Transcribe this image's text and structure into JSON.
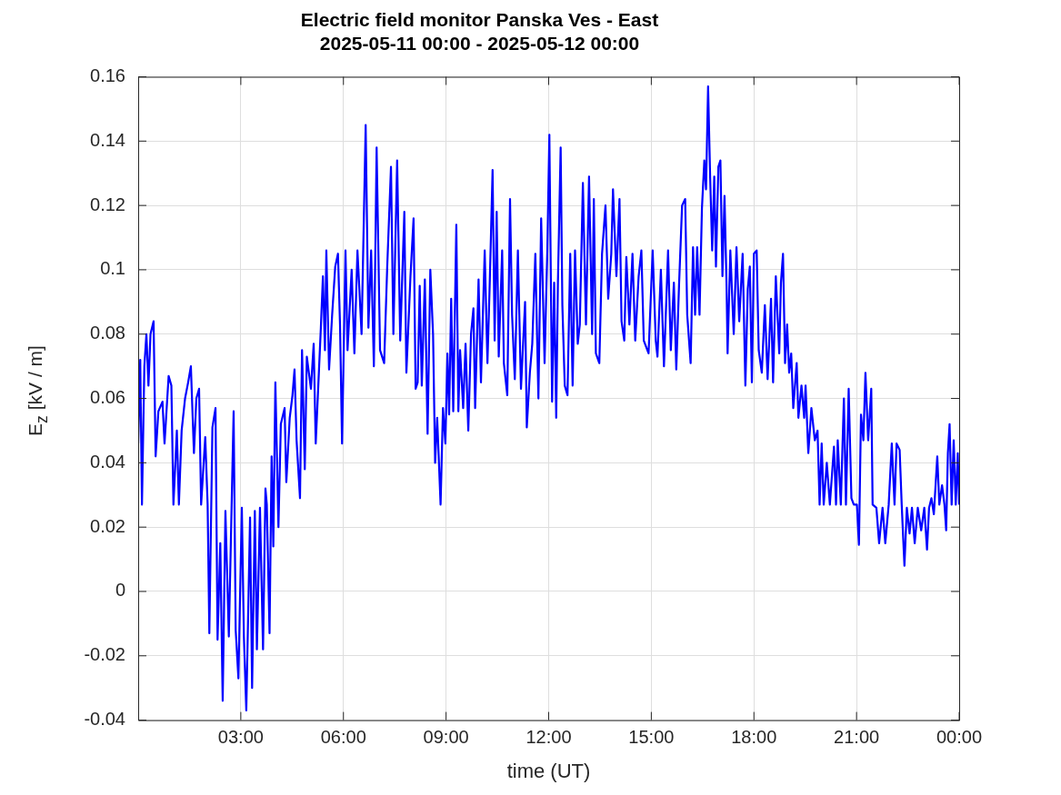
{
  "chart_data": {
    "type": "line",
    "title": "Electric field monitor Panska Ves - East",
    "subtitle": "2025-05-11 00:00 - 2025-05-12 00:00",
    "xlabel": "time (UT)",
    "ylabel": "E$_{z}$ [kV / m]",
    "xlim": [
      0,
      24
    ],
    "xticks": [
      {
        "value": 3,
        "label": "03:00"
      },
      {
        "value": 6,
        "label": "06:00"
      },
      {
        "value": 9,
        "label": "09:00"
      },
      {
        "value": 12,
        "label": "12:00"
      },
      {
        "value": 15,
        "label": "15:00"
      },
      {
        "value": 18,
        "label": "18:00"
      },
      {
        "value": 21,
        "label": "21:00"
      },
      {
        "value": 24,
        "label": "00:00"
      }
    ],
    "ylim": [
      -0.04,
      0.16
    ],
    "yticks": [
      -0.04,
      -0.02,
      0,
      0.02,
      0.04,
      0.06,
      0.08,
      0.1,
      0.12,
      0.14,
      0.16
    ],
    "grid": true,
    "series": [
      {
        "color": "#0000ff",
        "x": [
          0.0,
          0.06,
          0.11,
          0.18,
          0.24,
          0.3,
          0.36,
          0.45,
          0.51,
          0.59,
          0.71,
          0.77,
          0.89,
          0.97,
          1.03,
          1.13,
          1.19,
          1.27,
          1.37,
          1.46,
          1.54,
          1.63,
          1.7,
          1.78,
          1.84,
          1.96,
          2.03,
          2.08,
          2.17,
          2.26,
          2.32,
          2.4,
          2.47,
          2.55,
          2.65,
          2.73,
          2.79,
          2.85,
          2.93,
          3.03,
          3.09,
          3.16,
          3.27,
          3.33,
          3.41,
          3.47,
          3.56,
          3.65,
          3.72,
          3.76,
          3.84,
          3.9,
          3.95,
          4.01,
          4.1,
          4.17,
          4.28,
          4.33,
          4.43,
          4.51,
          4.57,
          4.63,
          4.73,
          4.79,
          4.87,
          4.93,
          5.05,
          5.13,
          5.19,
          5.29,
          5.34,
          5.4,
          5.46,
          5.5,
          5.58,
          5.67,
          5.76,
          5.84,
          5.9,
          5.96,
          6.06,
          6.12,
          6.24,
          6.32,
          6.41,
          6.53,
          6.65,
          6.73,
          6.81,
          6.89,
          6.97,
          7.07,
          7.19,
          7.28,
          7.39,
          7.46,
          7.57,
          7.66,
          7.78,
          7.84,
          7.96,
          8.05,
          8.11,
          8.17,
          8.23,
          8.29,
          8.38,
          8.46,
          8.54,
          8.62,
          8.68,
          8.74,
          8.84,
          8.91,
          8.98,
          9.04,
          9.09,
          9.15,
          9.21,
          9.3,
          9.36,
          9.41,
          9.5,
          9.57,
          9.65,
          9.73,
          9.8,
          9.85,
          9.95,
          10.02,
          10.13,
          10.21,
          10.28,
          10.36,
          10.42,
          10.48,
          10.54,
          10.64,
          10.69,
          10.79,
          10.87,
          10.93,
          11.01,
          11.1,
          11.19,
          11.31,
          11.36,
          11.45,
          11.52,
          11.61,
          11.7,
          11.78,
          11.88,
          11.96,
          12.02,
          12.1,
          12.16,
          12.22,
          12.27,
          12.35,
          12.4,
          12.47,
          12.55,
          12.63,
          12.7,
          12.77,
          12.85,
          12.91,
          13.0,
          13.09,
          13.18,
          13.27,
          13.32,
          13.38,
          13.48,
          13.56,
          13.66,
          13.74,
          13.83,
          13.88,
          13.98,
          14.07,
          14.13,
          14.21,
          14.27,
          14.36,
          14.45,
          14.53,
          14.63,
          14.71,
          14.78,
          14.92,
          15.04,
          15.13,
          15.18,
          15.28,
          15.37,
          15.49,
          15.57,
          15.66,
          15.73,
          15.81,
          15.9,
          15.99,
          16.05,
          16.15,
          16.22,
          16.28,
          16.34,
          16.41,
          16.48,
          16.55,
          16.6,
          16.66,
          16.72,
          16.78,
          16.84,
          16.89,
          16.96,
          17.02,
          17.08,
          17.14,
          17.2,
          17.23,
          17.31,
          17.41,
          17.49,
          17.57,
          17.67,
          17.75,
          17.82,
          17.88,
          17.94,
          18.0,
          18.08,
          18.14,
          18.23,
          18.32,
          18.4,
          18.5,
          18.56,
          18.64,
          18.74,
          18.79,
          18.85,
          18.91,
          18.97,
          19.03,
          19.09,
          19.15,
          19.25,
          19.3,
          19.39,
          19.47,
          19.51,
          19.59,
          19.68,
          19.78,
          19.86,
          19.92,
          19.98,
          20.04,
          20.13,
          20.22,
          20.34,
          20.4,
          20.45,
          20.54,
          20.63,
          20.69,
          20.77,
          20.85,
          20.92,
          21.01,
          21.07,
          21.13,
          21.2,
          21.26,
          21.34,
          21.43,
          21.47,
          21.58,
          21.66,
          21.76,
          21.84,
          21.94,
          22.03,
          22.11,
          22.17,
          22.26,
          22.32,
          22.4,
          22.47,
          22.55,
          22.62,
          22.7,
          22.79,
          22.89,
          22.98,
          23.06,
          23.12,
          23.19,
          23.26,
          23.36,
          23.42,
          23.5,
          23.57,
          23.62,
          23.67,
          23.72,
          23.78,
          23.84,
          23.9,
          23.96,
          24.0
        ],
        "values": [
          0.046,
          0.072,
          0.027,
          0.07,
          0.08,
          0.064,
          0.08,
          0.084,
          0.042,
          0.056,
          0.059,
          0.046,
          0.067,
          0.064,
          0.027,
          0.05,
          0.027,
          0.05,
          0.06,
          0.065,
          0.07,
          0.043,
          0.06,
          0.063,
          0.027,
          0.048,
          0.027,
          -0.013,
          0.051,
          0.057,
          -0.015,
          0.015,
          -0.034,
          0.025,
          -0.014,
          0.026,
          0.056,
          -0.012,
          -0.027,
          0.026,
          -0.014,
          -0.037,
          0.023,
          -0.03,
          0.025,
          -0.018,
          0.026,
          -0.018,
          0.032,
          0.027,
          -0.013,
          0.042,
          0.014,
          0.065,
          0.02,
          0.052,
          0.057,
          0.034,
          0.054,
          0.061,
          0.069,
          0.047,
          0.029,
          0.075,
          0.038,
          0.073,
          0.063,
          0.077,
          0.046,
          0.07,
          0.082,
          0.098,
          0.075,
          0.106,
          0.069,
          0.086,
          0.101,
          0.105,
          0.083,
          0.046,
          0.106,
          0.075,
          0.1,
          0.074,
          0.106,
          0.08,
          0.145,
          0.082,
          0.106,
          0.07,
          0.138,
          0.075,
          0.071,
          0.101,
          0.132,
          0.08,
          0.134,
          0.078,
          0.118,
          0.068,
          0.098,
          0.116,
          0.063,
          0.065,
          0.095,
          0.064,
          0.097,
          0.049,
          0.1,
          0.08,
          0.04,
          0.054,
          0.027,
          0.057,
          0.046,
          0.074,
          0.055,
          0.091,
          0.056,
          0.114,
          0.056,
          0.075,
          0.057,
          0.077,
          0.05,
          0.08,
          0.088,
          0.057,
          0.097,
          0.065,
          0.106,
          0.071,
          0.097,
          0.131,
          0.078,
          0.118,
          0.073,
          0.106,
          0.071,
          0.061,
          0.122,
          0.086,
          0.066,
          0.106,
          0.063,
          0.09,
          0.051,
          0.068,
          0.077,
          0.105,
          0.06,
          0.116,
          0.071,
          0.106,
          0.142,
          0.059,
          0.096,
          0.054,
          0.096,
          0.138,
          0.089,
          0.064,
          0.061,
          0.105,
          0.064,
          0.106,
          0.077,
          0.083,
          0.127,
          0.083,
          0.129,
          0.08,
          0.122,
          0.074,
          0.071,
          0.105,
          0.12,
          0.091,
          0.105,
          0.125,
          0.098,
          0.122,
          0.084,
          0.078,
          0.104,
          0.083,
          0.105,
          0.078,
          0.098,
          0.106,
          0.078,
          0.074,
          0.106,
          0.078,
          0.073,
          0.1,
          0.07,
          0.106,
          0.075,
          0.096,
          0.069,
          0.095,
          0.12,
          0.122,
          0.086,
          0.071,
          0.107,
          0.086,
          0.107,
          0.086,
          0.119,
          0.134,
          0.125,
          0.157,
          0.129,
          0.106,
          0.129,
          0.101,
          0.132,
          0.134,
          0.098,
          0.123,
          0.095,
          0.074,
          0.106,
          0.08,
          0.107,
          0.084,
          0.105,
          0.064,
          0.094,
          0.101,
          0.065,
          0.105,
          0.106,
          0.075,
          0.068,
          0.089,
          0.066,
          0.091,
          0.065,
          0.098,
          0.074,
          0.096,
          0.105,
          0.071,
          0.083,
          0.068,
          0.074,
          0.057,
          0.071,
          0.054,
          0.064,
          0.054,
          0.064,
          0.043,
          0.057,
          0.047,
          0.05,
          0.027,
          0.046,
          0.027,
          0.04,
          0.027,
          0.045,
          0.027,
          0.047,
          0.027,
          0.06,
          0.027,
          0.063,
          0.029,
          0.027,
          0.027,
          0.0145,
          0.055,
          0.047,
          0.068,
          0.047,
          0.063,
          0.027,
          0.026,
          0.015,
          0.026,
          0.015,
          0.027,
          0.046,
          0.027,
          0.046,
          0.044,
          0.027,
          0.008,
          0.026,
          0.018,
          0.026,
          0.015,
          0.026,
          0.019,
          0.026,
          0.013,
          0.026,
          0.029,
          0.024,
          0.042,
          0.027,
          0.033,
          0.027,
          0.019,
          0.043,
          0.052,
          0.027,
          0.047,
          0.027,
          0.043,
          0.027
        ]
      }
    ]
  }
}
